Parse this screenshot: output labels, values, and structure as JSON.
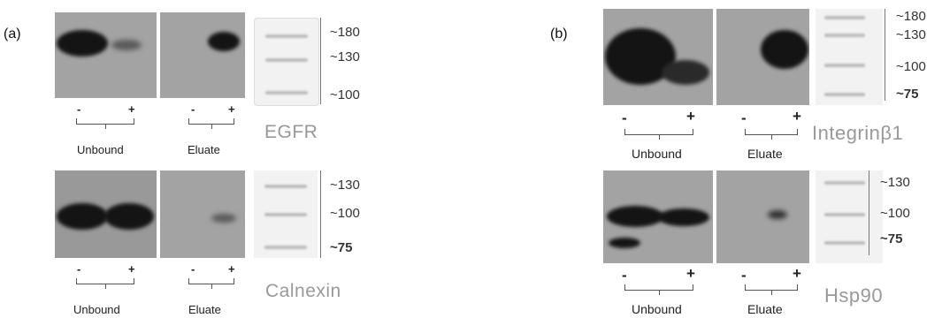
{
  "panels": [
    {
      "label": "(a)",
      "blots": [
        {
          "protein": "EGFR",
          "markers": [
            "~180",
            "~130",
            "~100"
          ],
          "lanes": [
            "-",
            "+",
            "-",
            "+"
          ],
          "groups": [
            "Unbound",
            "Eluate"
          ]
        },
        {
          "protein": "Calnexin",
          "markers": [
            "~130",
            "~100",
            "~75"
          ],
          "lanes": [
            "-",
            "+",
            "-",
            "+"
          ],
          "groups": [
            "Unbound",
            "Eluate"
          ]
        }
      ]
    },
    {
      "label": "(b)",
      "blots": [
        {
          "protein": "Integrinβ1",
          "markers": [
            "~180",
            "~130",
            "~100",
            "~75"
          ],
          "lanes": [
            "-",
            "+",
            "-",
            "+"
          ],
          "groups": [
            "Unbound",
            "Eluate"
          ]
        },
        {
          "protein": "Hsp90",
          "markers": [
            "~130",
            "~100",
            "~75"
          ],
          "lanes": [
            "-",
            "+",
            "-",
            "+"
          ],
          "groups": [
            "Unbound",
            "Eluate"
          ]
        }
      ]
    }
  ]
}
